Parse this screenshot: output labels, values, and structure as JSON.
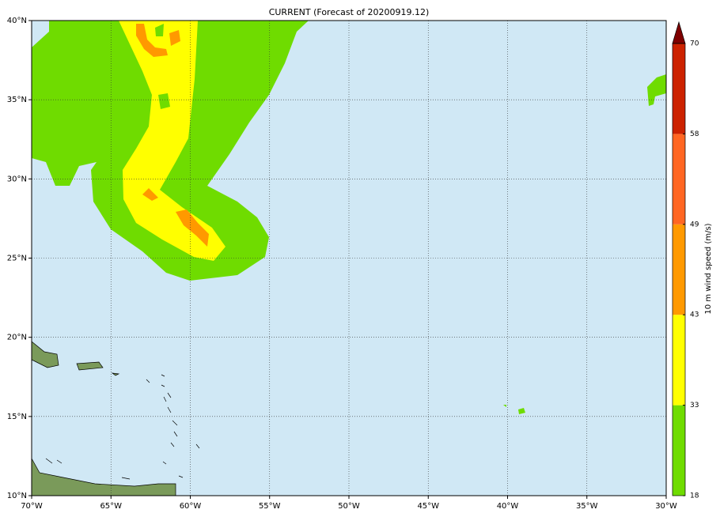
{
  "map": {
    "title": "CURRENT (Forecast of 20200919.12)",
    "xlim": [
      -70,
      -30
    ],
    "ylim": [
      10,
      40
    ],
    "xticks": [
      {
        "value": -70,
        "label": "70°W"
      },
      {
        "value": -65,
        "label": "65°W"
      },
      {
        "value": -60,
        "label": "60°W"
      },
      {
        "value": -55,
        "label": "55°W"
      },
      {
        "value": -50,
        "label": "50°W"
      },
      {
        "value": -45,
        "label": "45°W"
      },
      {
        "value": -40,
        "label": "40°W"
      },
      {
        "value": -35,
        "label": "35°W"
      },
      {
        "value": -30,
        "label": "30°W"
      }
    ],
    "yticks": [
      {
        "value": 10,
        "label": "10°N"
      },
      {
        "value": 15,
        "label": "15°N"
      },
      {
        "value": 20,
        "label": "20°N"
      },
      {
        "value": 25,
        "label": "25°N"
      },
      {
        "value": 30,
        "label": "30°N"
      },
      {
        "value": 35,
        "label": "35°N"
      },
      {
        "value": 40,
        "label": "40°N"
      }
    ],
    "grid": true
  },
  "colorbar": {
    "label": "10 m wind speed (m/s)",
    "levels": [
      18,
      33,
      43,
      49,
      58,
      70
    ],
    "colors": [
      "#6fdc00",
      "#ffff00",
      "#ff9900",
      "#ff6622",
      "#cc2200"
    ],
    "extend_color": "#7f0000"
  }
}
